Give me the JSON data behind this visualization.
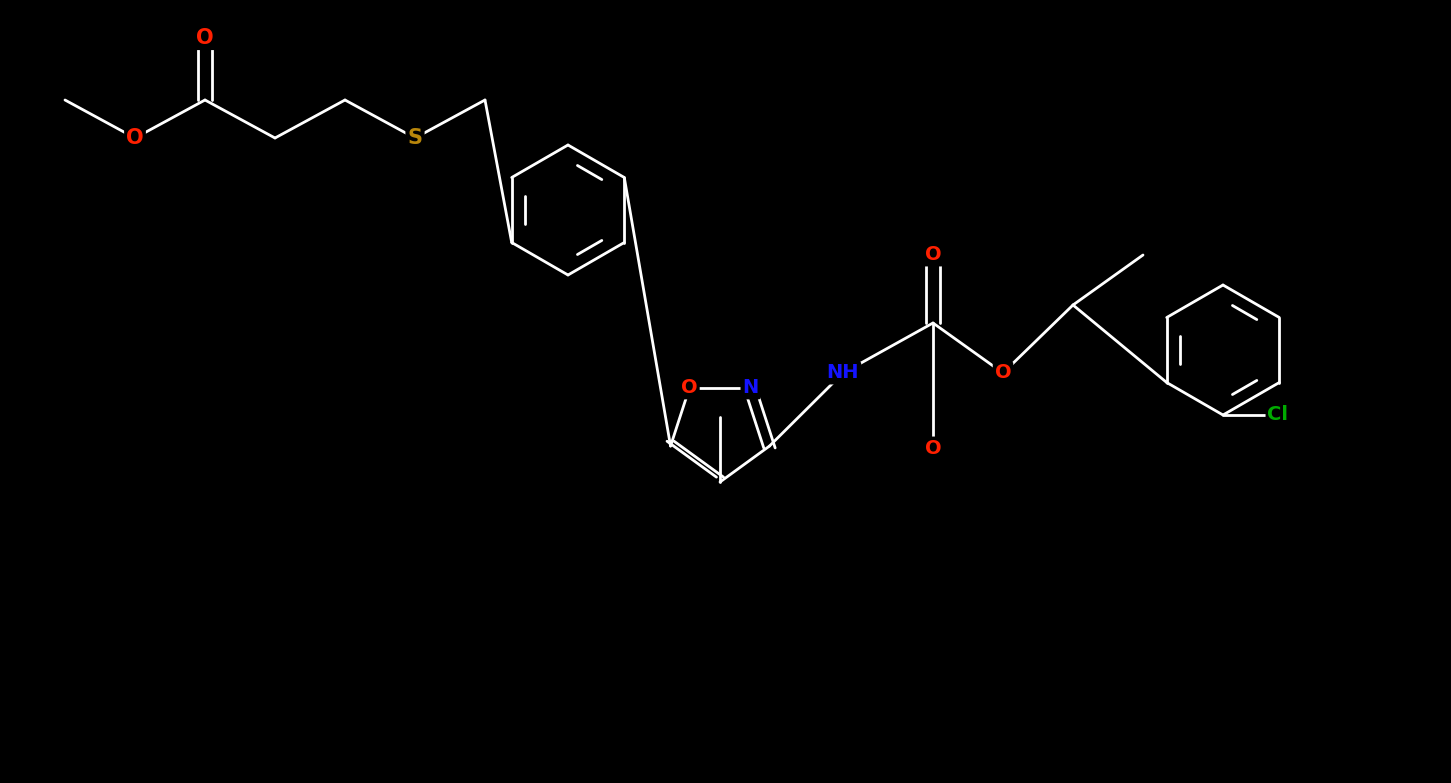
{
  "bg_color": "#000000",
  "bond_color": "#ffffff",
  "bond_width": 2.0,
  "atom_colors": {
    "O": "#ff2000",
    "S": "#b8860b",
    "N": "#1414ff",
    "Cl": "#00aa00",
    "C": "#ffffff",
    "H": "#ffffff"
  },
  "font_size": 14,
  "fig_width": 14.51,
  "fig_height": 7.83,
  "dpi": 100
}
